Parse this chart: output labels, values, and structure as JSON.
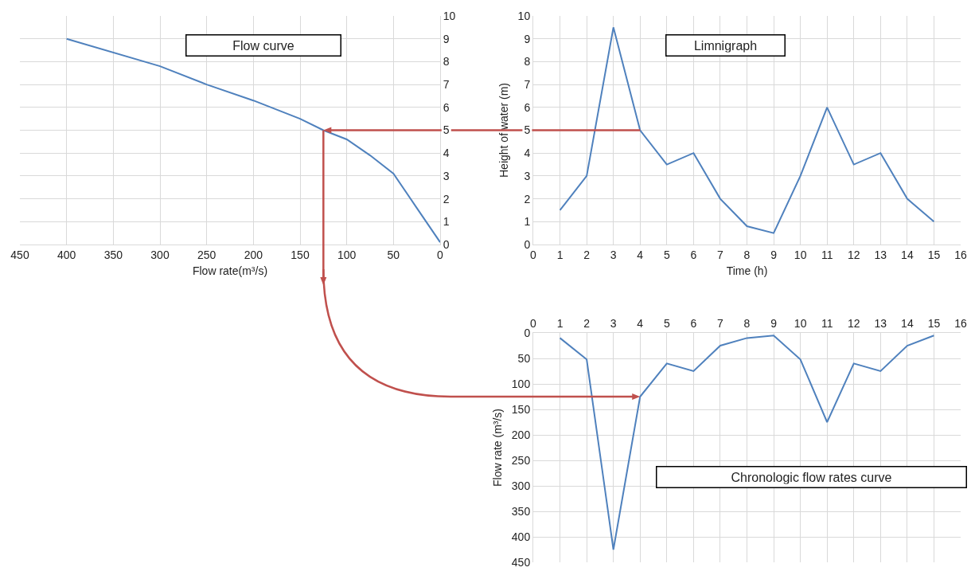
{
  "chart_data": [
    {
      "type": "line",
      "title": "Flow curve",
      "xlabel": "Flow rate(m³/s)",
      "x": [
        400,
        300,
        250,
        200,
        150,
        125,
        100,
        75,
        50,
        25,
        0
      ],
      "series": [
        {
          "color": "#4f81bd",
          "values": [
            9,
            7.8,
            7,
            6.3,
            5.5,
            5,
            4.6,
            3.9,
            3.1,
            1.6,
            0.1
          ]
        }
      ],
      "xlim": [
        450,
        0
      ],
      "xticks": [
        450,
        400,
        350,
        300,
        250,
        200,
        150,
        100,
        50,
        0
      ],
      "ylim": [
        0,
        10
      ],
      "yticks": [
        0,
        1,
        2,
        3,
        4,
        5,
        6,
        7,
        8,
        9,
        10
      ],
      "grid": true,
      "marker": "none"
    },
    {
      "type": "line",
      "title": "Limnigraph",
      "xlabel": "Time (h)",
      "ylabel": "Height of water (m)",
      "x": [
        1,
        2,
        3,
        4,
        5,
        6,
        7,
        8,
        9,
        10,
        11,
        12,
        13,
        14,
        15
      ],
      "series": [
        {
          "color": "#4f81bd",
          "values": [
            1.5,
            3,
            9.5,
            5,
            3.5,
            4,
            2,
            0.8,
            0.5,
            3,
            6,
            3.5,
            4,
            2,
            1
          ]
        }
      ],
      "xlim": [
        0,
        16
      ],
      "xticks": [
        0,
        1,
        2,
        3,
        4,
        5,
        6,
        7,
        8,
        9,
        10,
        11,
        12,
        13,
        14,
        15,
        16
      ],
      "ylim": [
        0,
        10
      ],
      "yticks": [
        0,
        1,
        2,
        3,
        4,
        5,
        6,
        7,
        8,
        9,
        10
      ],
      "grid": true,
      "marker": "none"
    },
    {
      "type": "line",
      "title": "Chronologic flow rates curve",
      "ylabel": "Flow rate (m³/s)",
      "x": [
        1,
        2,
        3,
        4,
        5,
        6,
        7,
        8,
        9,
        10,
        11,
        12,
        13,
        14,
        15
      ],
      "series": [
        {
          "color": "#4f81bd",
          "values": [
            10,
            52,
            425,
            125,
            60,
            75,
            25,
            10,
            5,
            52,
            175,
            60,
            75,
            25,
            5
          ]
        }
      ],
      "xlim": [
        0,
        16
      ],
      "xticks": [
        0,
        1,
        2,
        3,
        4,
        5,
        6,
        7,
        8,
        9,
        10,
        11,
        12,
        13,
        14,
        15,
        16
      ],
      "ylim": [
        450,
        0
      ],
      "yticks": [
        0,
        50,
        100,
        150,
        200,
        250,
        300,
        350,
        400,
        450
      ],
      "grid": true,
      "marker": "none"
    }
  ]
}
